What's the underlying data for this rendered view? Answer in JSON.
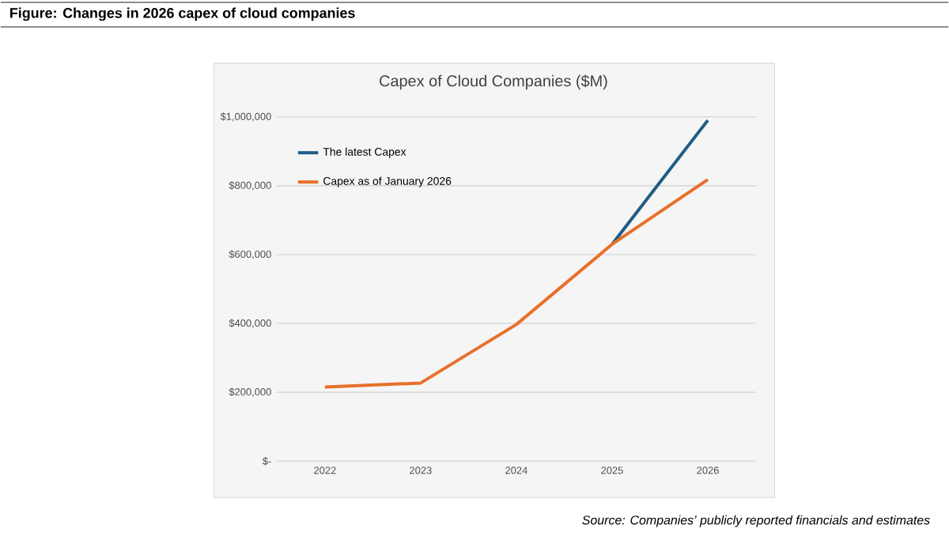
{
  "chart_data": {
    "type": "line",
    "title": "Figure: Changes in 2026 capex of cloud companies",
    "subtitle": "Capex of Cloud Companies ($M)",
    "categories": [
      "2022",
      "2023",
      "2024",
      "2025",
      "2026"
    ],
    "series": [
      {
        "name": "The latest Capex",
        "color": "#1f5c85",
        "values": [
          null,
          null,
          null,
          630000,
          990000
        ]
      },
      {
        "name": "Capex as of January 2026",
        "color": "#e8702a",
        "values": [
          215000,
          227000,
          397000,
          630000,
          818000
        ]
      }
    ],
    "ylim": [
      0,
      1000000
    ],
    "yticks": [
      {
        "value": 0,
        "label": "$-"
      },
      {
        "value": 200000,
        "label": "$200,000"
      },
      {
        "value": 400000,
        "label": "$400,000"
      },
      {
        "value": 600000,
        "label": "$600,000"
      },
      {
        "value": 800000,
        "label": "$800,000"
      },
      {
        "value": 1000000,
        "label": "$1,000,000"
      }
    ],
    "grid": "y",
    "legend": "top left",
    "line_style": "solid",
    "marker": "none",
    "annotations": [
      "Source: Companies’ publicly reported financials and estimates"
    ]
  }
}
